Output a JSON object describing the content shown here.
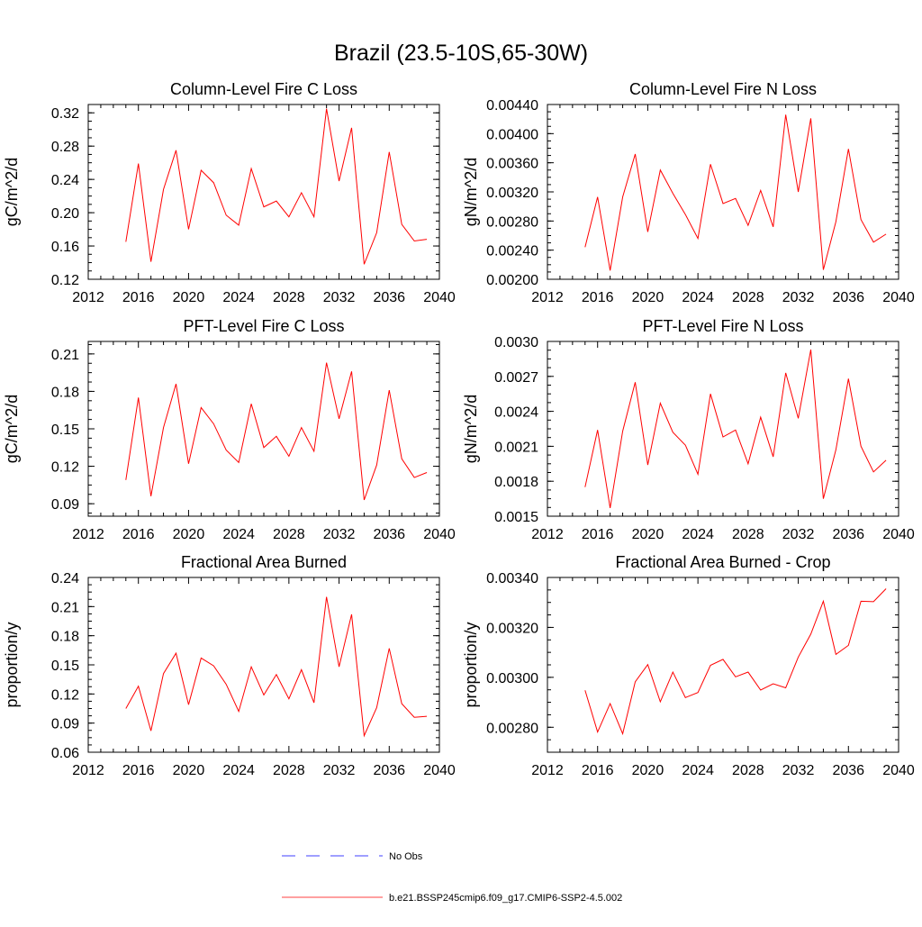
{
  "figure": {
    "title": "Brazil (23.5-10S,65-30W)"
  },
  "legend": {
    "entries": [
      {
        "label": "No Obs",
        "color": "#0000ff",
        "style": "dashed"
      },
      {
        "label": "b.e21.BSSP245cmip6.f09_g17.CMIP6-SSP2-4.5.002",
        "color": "#ff0000",
        "style": "solid"
      }
    ]
  },
  "chart_data": [
    {
      "type": "line",
      "title": "Column-Level Fire C Loss",
      "xlabel": "",
      "ylabel": "gC/m^2/d",
      "xlim": [
        2012,
        2040
      ],
      "ylim": [
        0.12,
        0.33
      ],
      "xticks": [
        2012,
        2016,
        2020,
        2024,
        2028,
        2032,
        2036,
        2040
      ],
      "xtick_labels": [
        "2012",
        "2016",
        "2020",
        "2024",
        "2028",
        "2032",
        "2036",
        "2040"
      ],
      "yticks": [
        0.12,
        0.16,
        0.2,
        0.24,
        0.28,
        0.32
      ],
      "ytick_labels": [
        "0.12",
        "0.16",
        "0.20",
        "0.24",
        "0.28",
        "0.32"
      ],
      "series": [
        {
          "name": "b.e21.BSSP245cmip6.f09_g17.CMIP6-SSP2-4.5.002",
          "color": "#ff0000",
          "x": [
            2015,
            2016,
            2017,
            2018,
            2019,
            2020,
            2021,
            2022,
            2023,
            2024,
            2025,
            2026,
            2027,
            2028,
            2029,
            2030,
            2031,
            2032,
            2033,
            2034,
            2035,
            2036,
            2037,
            2038,
            2039
          ],
          "values": [
            0.165,
            0.259,
            0.141,
            0.228,
            0.275,
            0.18,
            0.251,
            0.236,
            0.197,
            0.185,
            0.253,
            0.207,
            0.214,
            0.195,
            0.224,
            0.195,
            0.325,
            0.238,
            0.302,
            0.138,
            0.176,
            0.273,
            0.186,
            0.166,
            0.168
          ]
        }
      ]
    },
    {
      "type": "line",
      "title": "Column-Level Fire N Loss",
      "xlabel": "",
      "ylabel": "gN/m^2/d",
      "xlim": [
        2012,
        2040
      ],
      "ylim": [
        0.002,
        0.0044
      ],
      "xticks": [
        2012,
        2016,
        2020,
        2024,
        2028,
        2032,
        2036,
        2040
      ],
      "xtick_labels": [
        "2012",
        "2016",
        "2020",
        "2024",
        "2028",
        "2032",
        "2036",
        "2040"
      ],
      "yticks": [
        0.002,
        0.0024,
        0.0028,
        0.0032,
        0.0036,
        0.004,
        0.0044
      ],
      "ytick_labels": [
        "0.00200",
        "0.00240",
        "0.00280",
        "0.00320",
        "0.00360",
        "0.00400",
        "0.00440"
      ],
      "series": [
        {
          "name": "b.e21.BSSP245cmip6.f09_g17.CMIP6-SSP2-4.5.002",
          "color": "#ff0000",
          "x": [
            2015,
            2016,
            2017,
            2018,
            2019,
            2020,
            2021,
            2022,
            2023,
            2024,
            2025,
            2026,
            2027,
            2028,
            2029,
            2030,
            2031,
            2032,
            2033,
            2034,
            2035,
            2036,
            2037,
            2038,
            2039
          ],
          "values": [
            0.00244,
            0.00313,
            0.00212,
            0.00313,
            0.00372,
            0.00265,
            0.0035,
            0.00318,
            0.00289,
            0.00256,
            0.00358,
            0.00304,
            0.00311,
            0.00274,
            0.00322,
            0.00272,
            0.00426,
            0.0032,
            0.00421,
            0.00213,
            0.00279,
            0.00379,
            0.00282,
            0.00251,
            0.00262
          ]
        }
      ]
    },
    {
      "type": "line",
      "title": "PFT-Level Fire C Loss",
      "xlabel": "",
      "ylabel": "gC/m^2/d",
      "xlim": [
        2012,
        2040
      ],
      "ylim": [
        0.08,
        0.22
      ],
      "xticks": [
        2012,
        2016,
        2020,
        2024,
        2028,
        2032,
        2036,
        2040
      ],
      "xtick_labels": [
        "2012",
        "2016",
        "2020",
        "2024",
        "2028",
        "2032",
        "2036",
        "2040"
      ],
      "yticks": [
        0.09,
        0.12,
        0.15,
        0.18,
        0.21
      ],
      "ytick_labels": [
        "0.09",
        "0.12",
        "0.15",
        "0.18",
        "0.21"
      ],
      "series": [
        {
          "name": "b.e21.BSSP245cmip6.f09_g17.CMIP6-SSP2-4.5.002",
          "color": "#ff0000",
          "x": [
            2015,
            2016,
            2017,
            2018,
            2019,
            2020,
            2021,
            2022,
            2023,
            2024,
            2025,
            2026,
            2027,
            2028,
            2029,
            2030,
            2031,
            2032,
            2033,
            2034,
            2035,
            2036,
            2037,
            2038,
            2039
          ],
          "values": [
            0.109,
            0.175,
            0.096,
            0.151,
            0.186,
            0.122,
            0.167,
            0.154,
            0.133,
            0.123,
            0.17,
            0.135,
            0.144,
            0.128,
            0.151,
            0.132,
            0.203,
            0.158,
            0.196,
            0.093,
            0.121,
            0.181,
            0.126,
            0.111,
            0.115
          ]
        }
      ]
    },
    {
      "type": "line",
      "title": "PFT-Level Fire N Loss",
      "xlabel": "",
      "ylabel": "gN/m^2/d",
      "xlim": [
        2012,
        2040
      ],
      "ylim": [
        0.0015,
        0.003
      ],
      "xticks": [
        2012,
        2016,
        2020,
        2024,
        2028,
        2032,
        2036,
        2040
      ],
      "xtick_labels": [
        "2012",
        "2016",
        "2020",
        "2024",
        "2028",
        "2032",
        "2036",
        "2040"
      ],
      "yticks": [
        0.0015,
        0.0018,
        0.0021,
        0.0024,
        0.0027,
        0.003
      ],
      "ytick_labels": [
        "0.0015",
        "0.0018",
        "0.0021",
        "0.0024",
        "0.0027",
        "0.0030"
      ],
      "series": [
        {
          "name": "b.e21.BSSP245cmip6.f09_g17.CMIP6-SSP2-4.5.002",
          "color": "#ff0000",
          "x": [
            2015,
            2016,
            2017,
            2018,
            2019,
            2020,
            2021,
            2022,
            2023,
            2024,
            2025,
            2026,
            2027,
            2028,
            2029,
            2030,
            2031,
            2032,
            2033,
            2034,
            2035,
            2036,
            2037,
            2038,
            2039
          ],
          "values": [
            0.00175,
            0.00224,
            0.00157,
            0.00223,
            0.00265,
            0.00194,
            0.00247,
            0.00222,
            0.00211,
            0.00186,
            0.00255,
            0.00218,
            0.00224,
            0.00195,
            0.00235,
            0.00201,
            0.00273,
            0.00234,
            0.00293,
            0.00165,
            0.00207,
            0.00268,
            0.0021,
            0.00188,
            0.00198
          ]
        }
      ]
    },
    {
      "type": "line",
      "title": "Fractional Area Burned",
      "xlabel": "",
      "ylabel": "proportion/y",
      "xlim": [
        2012,
        2040
      ],
      "ylim": [
        0.06,
        0.24
      ],
      "xticks": [
        2012,
        2016,
        2020,
        2024,
        2028,
        2032,
        2036,
        2040
      ],
      "xtick_labels": [
        "2012",
        "2016",
        "2020",
        "2024",
        "2028",
        "2032",
        "2036",
        "2040"
      ],
      "yticks": [
        0.06,
        0.09,
        0.12,
        0.15,
        0.18,
        0.21,
        0.24
      ],
      "ytick_labels": [
        "0.06",
        "0.09",
        "0.12",
        "0.15",
        "0.18",
        "0.21",
        "0.24"
      ],
      "series": [
        {
          "name": "b.e21.BSSP245cmip6.f09_g17.CMIP6-SSP2-4.5.002",
          "color": "#ff0000",
          "x": [
            2015,
            2016,
            2017,
            2018,
            2019,
            2020,
            2021,
            2022,
            2023,
            2024,
            2025,
            2026,
            2027,
            2028,
            2029,
            2030,
            2031,
            2032,
            2033,
            2034,
            2035,
            2036,
            2037,
            2038,
            2039
          ],
          "values": [
            0.105,
            0.128,
            0.082,
            0.141,
            0.162,
            0.109,
            0.157,
            0.149,
            0.13,
            0.102,
            0.148,
            0.119,
            0.14,
            0.115,
            0.145,
            0.111,
            0.22,
            0.148,
            0.202,
            0.077,
            0.106,
            0.167,
            0.11,
            0.096,
            0.097
          ]
        }
      ]
    },
    {
      "type": "line",
      "title": "Fractional Area Burned - Crop",
      "xlabel": "",
      "ylabel": "proportion/y",
      "xlim": [
        2012,
        2040
      ],
      "ylim": [
        0.0027,
        0.0034
      ],
      "xticks": [
        2012,
        2016,
        2020,
        2024,
        2028,
        2032,
        2036,
        2040
      ],
      "xtick_labels": [
        "2012",
        "2016",
        "2020",
        "2024",
        "2028",
        "2032",
        "2036",
        "2040"
      ],
      "yticks": [
        0.0028,
        0.003,
        0.0032,
        0.0034
      ],
      "ytick_labels": [
        "0.00280",
        "0.00300",
        "0.00320",
        "0.00340"
      ],
      "series": [
        {
          "name": "b.e21.BSSP245cmip6.f09_g17.CMIP6-SSP2-4.5.002",
          "color": "#ff0000",
          "x": [
            2015,
            2016,
            2017,
            2018,
            2019,
            2020,
            2021,
            2022,
            2023,
            2024,
            2025,
            2026,
            2027,
            2028,
            2029,
            2030,
            2031,
            2032,
            2033,
            2034,
            2035,
            2036,
            2037,
            2038,
            2039
          ],
          "values": [
            0.002948,
            0.002781,
            0.002895,
            0.002774,
            0.002982,
            0.003051,
            0.002902,
            0.003021,
            0.002919,
            0.002939,
            0.003048,
            0.003072,
            0.003002,
            0.003021,
            0.002949,
            0.002974,
            0.002958,
            0.003081,
            0.003173,
            0.003305,
            0.003092,
            0.003128,
            0.003305,
            0.003303,
            0.003355
          ]
        }
      ]
    }
  ]
}
